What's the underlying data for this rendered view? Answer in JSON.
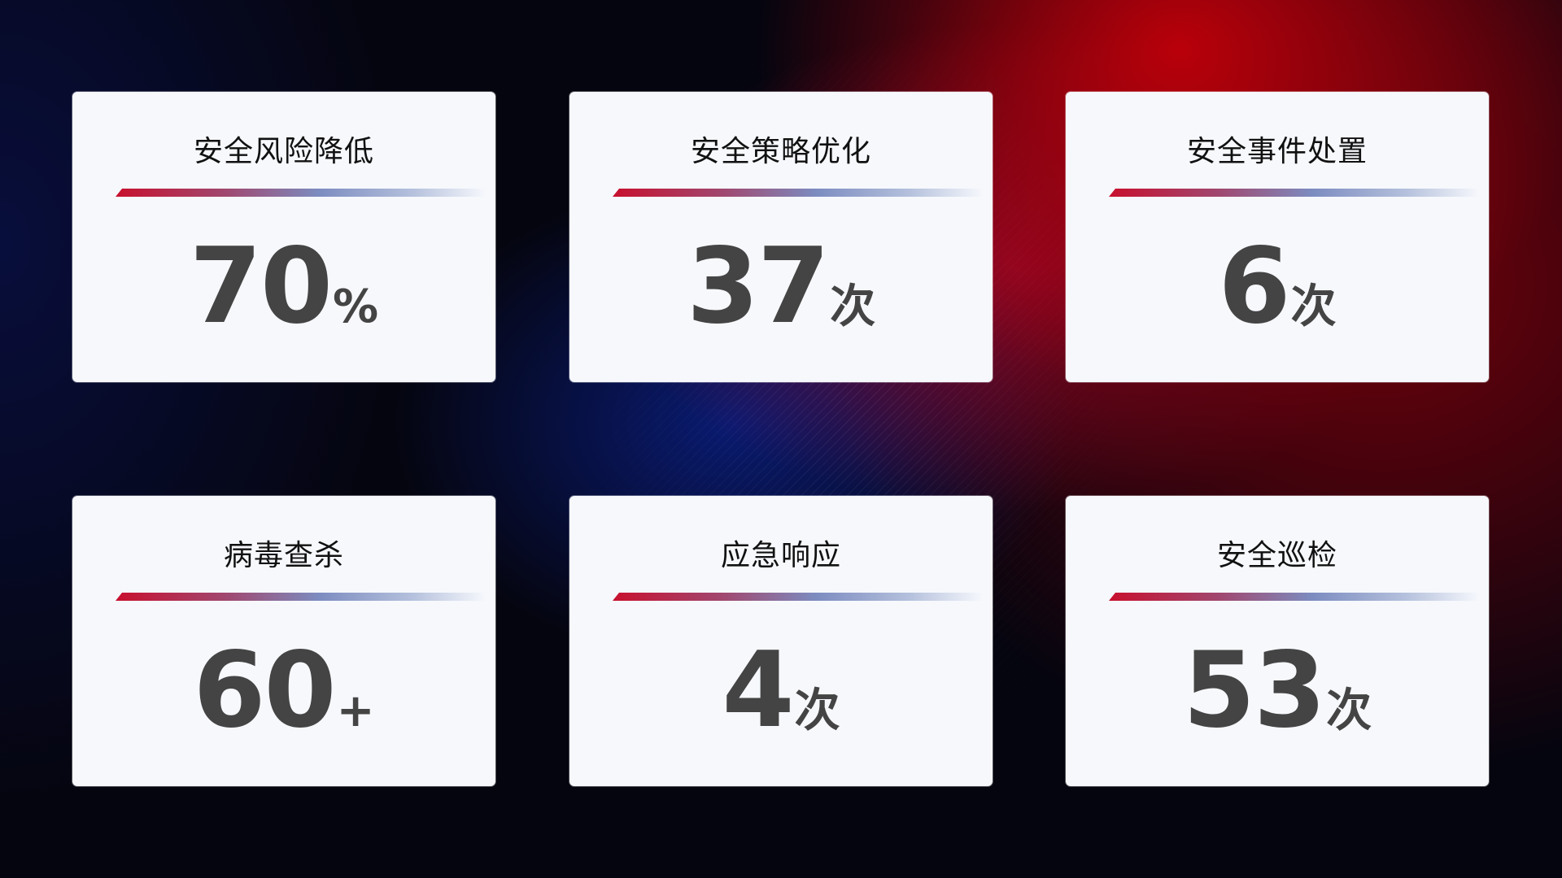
{
  "cards": [
    {
      "title": "安全风险降低",
      "value": "70",
      "unit": "%"
    },
    {
      "title": "安全策略优化",
      "value": "37",
      "unit": "次"
    },
    {
      "title": "安全事件处置",
      "value": "6",
      "unit": "次"
    },
    {
      "title": "病毒查杀",
      "value": "60",
      "unit": "+"
    },
    {
      "title": "应急响应",
      "value": "4",
      "unit": "次"
    },
    {
      "title": "安全巡检",
      "value": "53",
      "unit": "次"
    }
  ],
  "colors": {
    "accent_red": "#c8102e",
    "accent_blue": "#7c8cc0",
    "card_bg": "#f6f8fc",
    "value_text": "#444444"
  }
}
